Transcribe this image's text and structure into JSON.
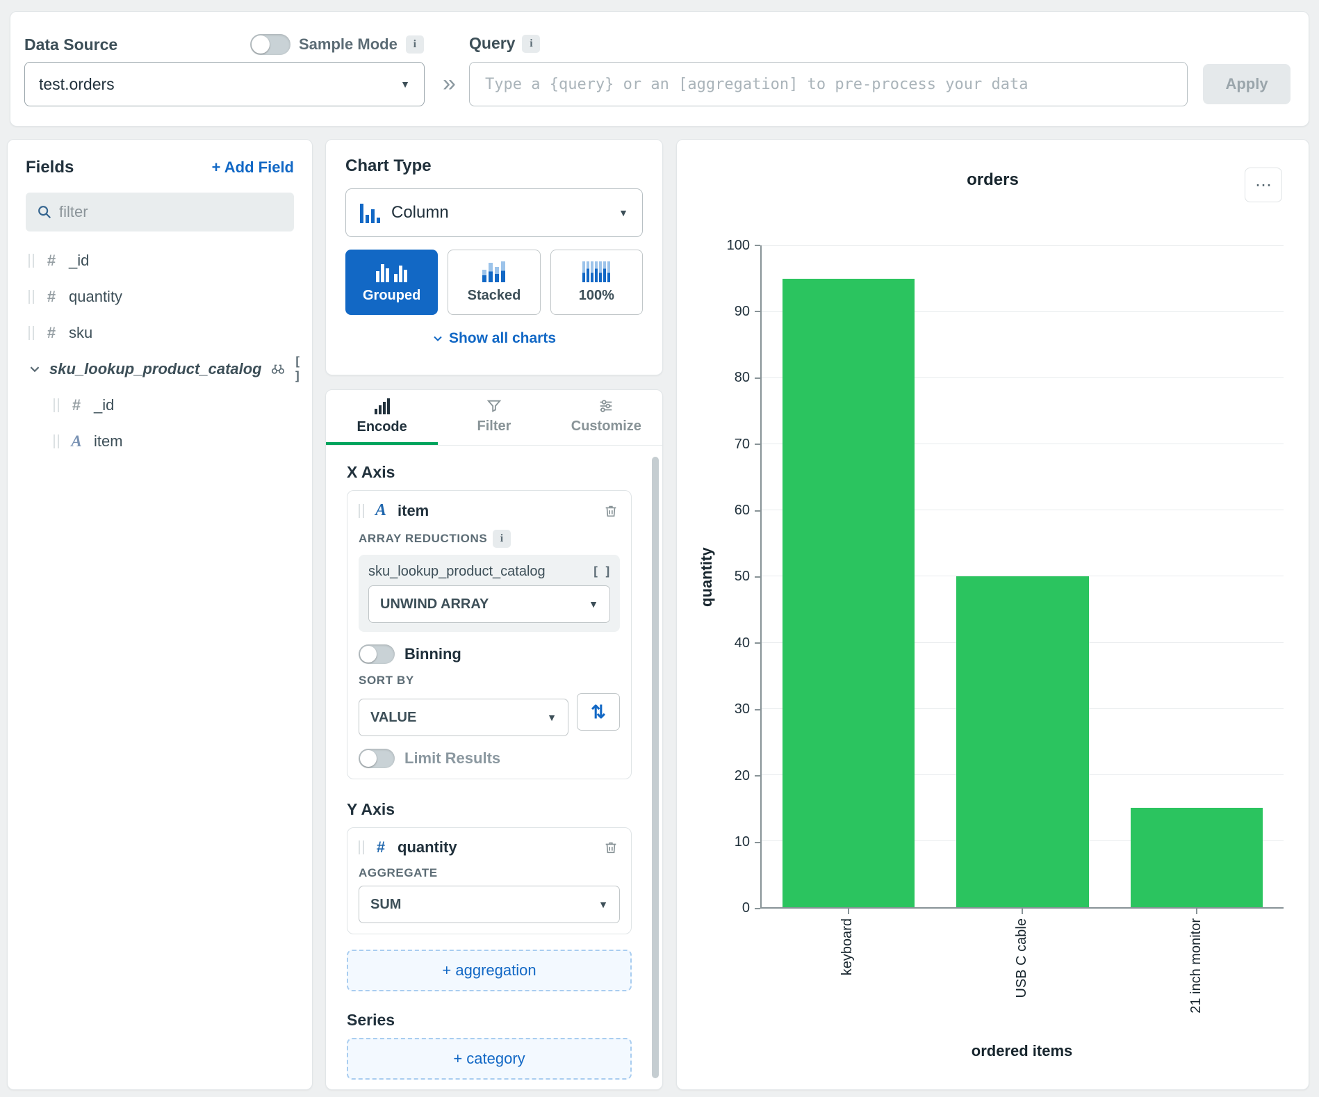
{
  "icons": {
    "info": "i",
    "caret": "▼",
    "double_chevron": "»",
    "ellipsis": "⋯",
    "sort_arrows": "⇅",
    "brackets": "[ ]"
  },
  "topbar": {
    "data_source_label": "Data Source",
    "data_source_value": "test.orders",
    "sample_mode_label": "Sample Mode",
    "sample_mode_on": false,
    "query_label": "Query",
    "query_placeholder": "Type a {query} or an [aggregation] to pre-process your data",
    "apply_label": "Apply"
  },
  "fields_panel": {
    "title": "Fields",
    "add_field_label": "+ Add Field",
    "filter_placeholder": "filter",
    "fields": [
      {
        "name": "_id",
        "type_icon": "#"
      },
      {
        "name": "quantity",
        "type_icon": "#"
      },
      {
        "name": "sku",
        "type_icon": "#"
      },
      {
        "name": "sku_lookup_product_catalog",
        "type": "lookup-array",
        "expanded": true
      },
      {
        "name": "_id",
        "type_icon": "#",
        "nested": true
      },
      {
        "name": "item",
        "type_icon": "A",
        "nested": true
      }
    ]
  },
  "chart_type_panel": {
    "title": "Chart Type",
    "selected": "Column",
    "subtypes": [
      {
        "label": "Grouped",
        "active": true
      },
      {
        "label": "Stacked",
        "active": false
      },
      {
        "label": "100%",
        "active": false
      }
    ],
    "show_all_label": "Show all charts"
  },
  "encode_panel": {
    "tabs": [
      {
        "label": "Encode",
        "active": true
      },
      {
        "label": "Filter",
        "active": false
      },
      {
        "label": "Customize",
        "active": false
      }
    ],
    "x_axis": {
      "title": "X Axis",
      "field": "item",
      "field_icon": "A",
      "array_reductions_label": "ARRAY REDUCTIONS",
      "array_field": "sku_lookup_product_catalog",
      "unwind_value": "UNWIND ARRAY",
      "binning_label": "Binning",
      "binning_on": false,
      "sort_by_label": "SORT BY",
      "sort_value": "VALUE",
      "limit_label": "Limit Results",
      "limit_on": false
    },
    "y_axis": {
      "title": "Y Axis",
      "field": "quantity",
      "field_icon": "#",
      "aggregate_label": "AGGREGATE",
      "aggregate_value": "SUM",
      "add_aggregation_label": "+ aggregation"
    },
    "series": {
      "title": "Series",
      "add_category_label": "+ category"
    }
  },
  "chart_data": {
    "type": "bar",
    "title": "orders",
    "categories": [
      "keyboard",
      "USB C cable",
      "21 inch monitor"
    ],
    "values": [
      95,
      50,
      15
    ],
    "xlabel": "ordered items",
    "ylabel": "quantity",
    "ylim": [
      0,
      100
    ],
    "yticks": [
      0,
      10,
      20,
      30,
      40,
      50,
      60,
      70,
      80,
      90,
      100
    ],
    "grid": true,
    "bar_color": "#2bc45f"
  }
}
